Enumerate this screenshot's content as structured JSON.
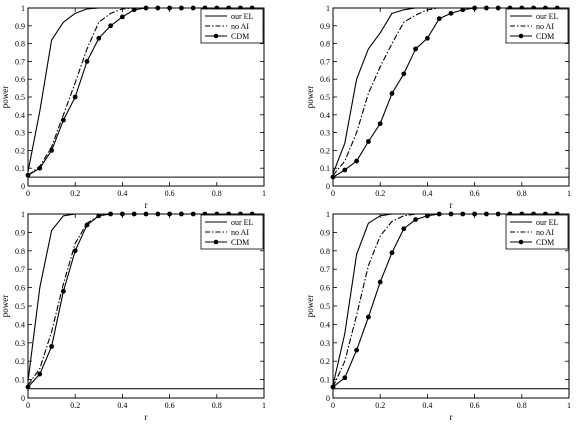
{
  "chart_data": [
    {
      "type": "line",
      "xlabel": "r",
      "ylabel": "power",
      "xlim": [
        0,
        1
      ],
      "ylim": [
        0,
        1
      ],
      "xticks": [
        "0",
        "0.2",
        "0.4",
        "0.6",
        "0.8",
        "1"
      ],
      "yticks": [
        "0",
        "0.1",
        "0.2",
        "0.3",
        "0.4",
        "0.5",
        "0.6",
        "0.7",
        "0.8",
        "0.9",
        "1"
      ],
      "legend_position": "top-right",
      "grid": false,
      "x": [
        0,
        0.05,
        0.1,
        0.15,
        0.2,
        0.25,
        0.3,
        0.35,
        0.4,
        0.45,
        0.5,
        0.55,
        0.6,
        0.65,
        0.7,
        0.75,
        0.8,
        0.85,
        0.9,
        0.95
      ],
      "reference_line": 0.05,
      "series": [
        {
          "name": "our EL",
          "style": "solid",
          "values": [
            0.08,
            0.42,
            0.82,
            0.92,
            0.97,
            0.995,
            1,
            1,
            1,
            1,
            1,
            1,
            1,
            1,
            1,
            1,
            1,
            1,
            1,
            1
          ]
        },
        {
          "name": "no AI",
          "style": "dashdot",
          "values": [
            0.06,
            0.11,
            0.22,
            0.4,
            0.58,
            0.77,
            0.92,
            0.97,
            0.995,
            1,
            1,
            1,
            1,
            1,
            1,
            1,
            1,
            1,
            1,
            1
          ]
        },
        {
          "name": "CDM",
          "style": "solid-dot",
          "values": [
            0.06,
            0.1,
            0.2,
            0.37,
            0.5,
            0.7,
            0.83,
            0.9,
            0.95,
            0.99,
            1,
            1,
            1,
            1,
            1,
            1,
            1,
            1,
            1,
            1
          ]
        }
      ]
    },
    {
      "type": "line",
      "xlabel": "r",
      "ylabel": "power",
      "xlim": [
        0,
        1
      ],
      "ylim": [
        0,
        1
      ],
      "xticks": [
        "0",
        "0.2",
        "0.4",
        "0.6",
        "0.8",
        "1"
      ],
      "yticks": [
        "0",
        "0.1",
        "0.2",
        "0.3",
        "0.4",
        "0.5",
        "0.6",
        "0.7",
        "0.8",
        "0.9",
        "1"
      ],
      "legend_position": "top-right",
      "grid": false,
      "x": [
        0,
        0.05,
        0.1,
        0.15,
        0.2,
        0.25,
        0.3,
        0.35,
        0.4,
        0.45,
        0.5,
        0.55,
        0.6,
        0.65,
        0.7,
        0.75,
        0.8,
        0.85,
        0.9,
        0.95
      ],
      "reference_line": 0.05,
      "series": [
        {
          "name": "our EL",
          "style": "solid",
          "values": [
            0.07,
            0.24,
            0.6,
            0.77,
            0.86,
            0.97,
            0.99,
            1,
            1,
            1,
            1,
            1,
            1,
            1,
            1,
            1,
            1,
            1,
            1,
            1
          ]
        },
        {
          "name": "no AI",
          "style": "dashdot",
          "values": [
            0.06,
            0.14,
            0.3,
            0.52,
            0.67,
            0.8,
            0.92,
            0.96,
            0.99,
            1,
            1,
            1,
            1,
            1,
            1,
            1,
            1,
            1,
            1,
            1
          ]
        },
        {
          "name": "CDM",
          "style": "solid-dot",
          "values": [
            0.05,
            0.09,
            0.14,
            0.25,
            0.35,
            0.52,
            0.63,
            0.77,
            0.83,
            0.94,
            0.97,
            0.99,
            1,
            1,
            1,
            1,
            1,
            1,
            1,
            1
          ]
        }
      ]
    },
    {
      "type": "line",
      "xlabel": "r",
      "ylabel": "power",
      "xlim": [
        0,
        1
      ],
      "ylim": [
        0,
        1
      ],
      "xticks": [
        "0",
        "0.2",
        "0.4",
        "0.6",
        "0.8",
        "1"
      ],
      "yticks": [
        "0",
        "0.1",
        "0.2",
        "0.3",
        "0.4",
        "0.5",
        "0.6",
        "0.7",
        "0.8",
        "0.9",
        "1"
      ],
      "legend_position": "top-right",
      "grid": false,
      "x": [
        0,
        0.05,
        0.1,
        0.15,
        0.2,
        0.25,
        0.3,
        0.35,
        0.4,
        0.45,
        0.5,
        0.55,
        0.6,
        0.65,
        0.7,
        0.75,
        0.8,
        0.85,
        0.9,
        0.95
      ],
      "reference_line": 0.05,
      "series": [
        {
          "name": "our EL",
          "style": "solid",
          "values": [
            0.09,
            0.6,
            0.91,
            0.99,
            1,
            1,
            1,
            1,
            1,
            1,
            1,
            1,
            1,
            1,
            1,
            1,
            1,
            1,
            1,
            1
          ]
        },
        {
          "name": "no AI",
          "style": "dashdot",
          "values": [
            0.07,
            0.16,
            0.36,
            0.62,
            0.84,
            0.95,
            0.99,
            1,
            1,
            1,
            1,
            1,
            1,
            1,
            1,
            1,
            1,
            1,
            1,
            1
          ]
        },
        {
          "name": "CDM",
          "style": "solid-dot",
          "values": [
            0.06,
            0.13,
            0.28,
            0.58,
            0.8,
            0.94,
            0.99,
            1,
            1,
            1,
            1,
            1,
            1,
            1,
            1,
            1,
            1,
            1,
            1,
            1
          ]
        }
      ]
    },
    {
      "type": "line",
      "xlabel": "r",
      "ylabel": "power",
      "xlim": [
        0,
        1
      ],
      "ylim": [
        0,
        1
      ],
      "xticks": [
        "0",
        "0.2",
        "0.4",
        "0.6",
        "0.8",
        "1"
      ],
      "yticks": [
        "0",
        "0.1",
        "0.2",
        "0.3",
        "0.4",
        "0.5",
        "0.6",
        "0.7",
        "0.8",
        "0.9",
        "1"
      ],
      "legend_position": "top-right",
      "grid": false,
      "x": [
        0,
        0.05,
        0.1,
        0.15,
        0.2,
        0.25,
        0.3,
        0.35,
        0.4,
        0.45,
        0.5,
        0.55,
        0.6,
        0.65,
        0.7,
        0.75,
        0.8,
        0.85,
        0.9,
        0.95
      ],
      "reference_line": 0.05,
      "series": [
        {
          "name": "our EL",
          "style": "solid",
          "values": [
            0.07,
            0.35,
            0.78,
            0.95,
            0.99,
            1,
            1,
            1,
            1,
            1,
            1,
            1,
            1,
            1,
            1,
            1,
            1,
            1,
            1,
            1
          ]
        },
        {
          "name": "no AI",
          "style": "dashdot",
          "values": [
            0.06,
            0.2,
            0.45,
            0.72,
            0.88,
            0.96,
            0.99,
            1,
            1,
            1,
            1,
            1,
            1,
            1,
            1,
            1,
            1,
            1,
            1,
            1
          ]
        },
        {
          "name": "CDM",
          "style": "solid-dot",
          "values": [
            0.06,
            0.11,
            0.26,
            0.44,
            0.63,
            0.79,
            0.92,
            0.97,
            0.99,
            1,
            1,
            1,
            1,
            1,
            1,
            1,
            1,
            1,
            1,
            1
          ]
        }
      ]
    }
  ]
}
